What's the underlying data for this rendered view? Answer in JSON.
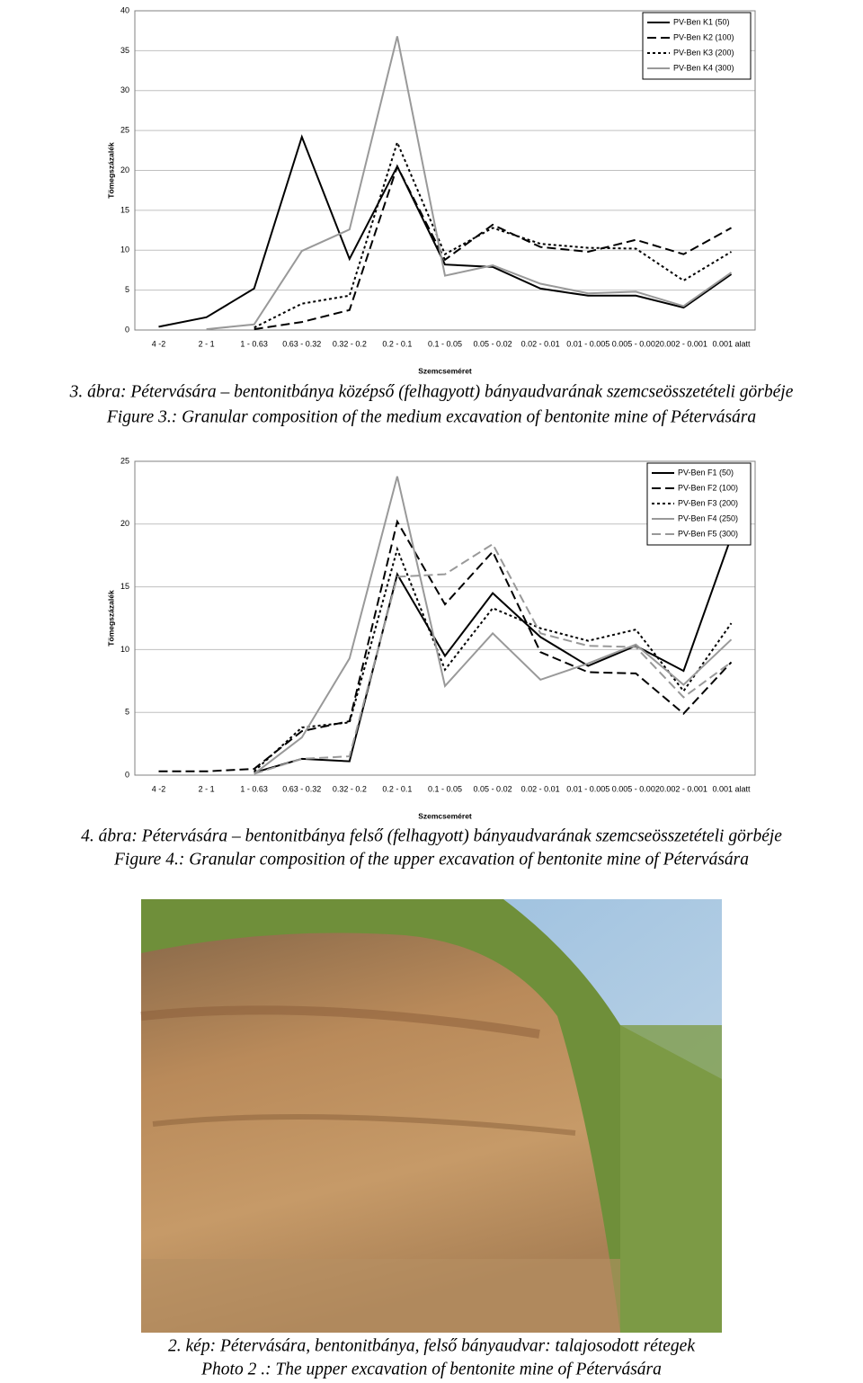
{
  "chart_data": [
    {
      "type": "line",
      "y_label": "Tömegszázalék",
      "x_label": "Szemcseméret",
      "categories": [
        "4 -2",
        "2 - 1",
        "1 - 0.63",
        "0.63 - 0.32",
        "0.32 - 0.2",
        "0.2 - 0.1",
        "0.1 - 0.05",
        "0.05 - 0.02",
        "0.02 - 0.01",
        "0.01 - 0.005",
        "0.005 - 0.002",
        "0.002 - 0.001",
        "0.001 alatt"
      ],
      "ylim": [
        0,
        40
      ],
      "yticks": [
        0,
        5,
        10,
        15,
        20,
        25,
        30,
        35,
        40
      ],
      "grid": true,
      "legend": "upper-right",
      "series": [
        {
          "name": "PV-Ben K1 (50)",
          "color": "#000000",
          "dash": "solid",
          "values": [
            0.4,
            1.6,
            5.2,
            24.2,
            8.9,
            20.5,
            8.2,
            7.9,
            5.2,
            4.3,
            4.3,
            2.8,
            7.0
          ]
        },
        {
          "name": "PV-Ben K2 (100)",
          "color": "#000000",
          "dash": "dashed",
          "values": [
            null,
            null,
            0.1,
            1.0,
            2.5,
            20.5,
            8.8,
            13.2,
            10.4,
            9.8,
            11.3,
            9.5,
            12.8
          ]
        },
        {
          "name": "PV-Ben K3 (200)",
          "color": "#000000",
          "dash": "dotted",
          "values": [
            null,
            null,
            0.3,
            3.3,
            4.3,
            23.5,
            9.5,
            12.8,
            10.8,
            10.3,
            10.2,
            6.2,
            9.8
          ]
        },
        {
          "name": "PV-Ben K4 (300)",
          "color": "#999999",
          "dash": "solid",
          "values": [
            null,
            0.1,
            0.7,
            9.9,
            12.6,
            36.8,
            6.8,
            8.1,
            5.8,
            4.6,
            4.8,
            3.0,
            7.2
          ]
        }
      ]
    },
    {
      "type": "line",
      "y_label": "Tömegszázalék",
      "x_label": "Szemcseméret",
      "categories": [
        "4 -2",
        "2 - 1",
        "1 - 0.63",
        "0.63 - 0.32",
        "0.32 - 0.2",
        "0.2 - 0.1",
        "0.1 - 0.05",
        "0.05 - 0.02",
        "0.02 - 0.01",
        "0.01 - 0.005",
        "0.005 - 0.002",
        "0.002 - 0.001",
        "0.001 alatt"
      ],
      "ylim": [
        0,
        25
      ],
      "yticks": [
        0,
        5,
        10,
        15,
        20,
        25
      ],
      "grid": true,
      "legend": "upper-right",
      "series": [
        {
          "name": "PV-Ben F1 (50)",
          "color": "#000000",
          "dash": "solid",
          "values": [
            null,
            null,
            0.2,
            1.3,
            1.1,
            16.0,
            9.5,
            14.5,
            11.0,
            8.7,
            10.3,
            8.3,
            19.0
          ]
        },
        {
          "name": "PV-Ben F2 (100)",
          "color": "#000000",
          "dash": "dashed",
          "values": [
            0.3,
            0.3,
            0.5,
            3.5,
            4.3,
            20.2,
            13.6,
            17.8,
            9.8,
            8.2,
            8.1,
            4.9,
            9.0
          ]
        },
        {
          "name": "PV-Ben F3 (200)",
          "color": "#000000",
          "dash": "dotted",
          "values": [
            null,
            null,
            0.3,
            3.8,
            4.2,
            18.0,
            8.4,
            13.3,
            11.7,
            10.7,
            11.6,
            6.7,
            12.1
          ]
        },
        {
          "name": "PV-Ben F4 (250)",
          "color": "#999999",
          "dash": "solid",
          "values": [
            null,
            null,
            0.1,
            3.0,
            9.3,
            23.8,
            7.1,
            11.3,
            7.6,
            8.9,
            10.4,
            7.2,
            10.8
          ]
        },
        {
          "name": "PV-Ben F5 (300)",
          "color": "#999999",
          "dash": "dashed",
          "values": [
            null,
            null,
            0.1,
            1.3,
            1.5,
            15.8,
            16.0,
            18.4,
            11.3,
            10.3,
            10.2,
            6.2,
            9.0
          ]
        }
      ]
    }
  ],
  "captions": [
    [
      "3. ábra: Pétervására – bentonitbánya középső (felhagyott) bányaudvarának szemcseösszetételi görbéje",
      "Figure 3.: Granular composition of the medium excavation of bentonite mine of Pétervására"
    ],
    [
      "4. ábra: Pétervására – bentonitbánya felső (felhagyott) bányaudvarának szemcseösszetételi görbéje",
      "Figure 4.: Granular composition of the upper excavation of bentonite mine of Pétervására"
    ],
    [
      "2. kép: Pétervására, bentonitbánya, felső bányaudvar: talajosodott rétegek",
      "Photo 2 .: The upper excavation of bentonite mine of Pétervására"
    ]
  ]
}
